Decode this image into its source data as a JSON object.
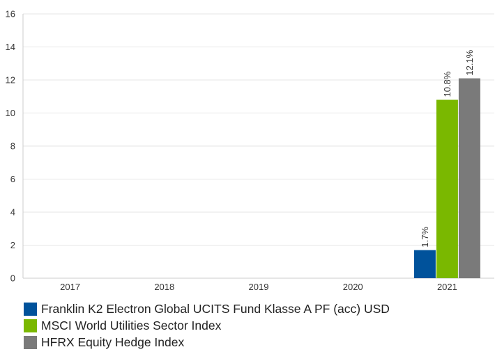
{
  "chart_data": {
    "type": "bar",
    "categories": [
      "2017",
      "2018",
      "2019",
      "2020",
      "2021"
    ],
    "series": [
      {
        "name": "Franklin K2 Electron Global UCITS Fund Klasse A PF (acc) USD",
        "color": "#00529b",
        "values": [
          null,
          null,
          null,
          null,
          1.7
        ],
        "labels": [
          "",
          "",
          "",
          "",
          "1.7%"
        ]
      },
      {
        "name": "MSCI World Utilities Sector Index",
        "color": "#7ab800",
        "values": [
          null,
          null,
          null,
          null,
          10.8
        ],
        "labels": [
          "",
          "",
          "",
          "",
          "10.8%"
        ]
      },
      {
        "name": "HFRX Equity Hedge Index",
        "color": "#7a7a7a",
        "values": [
          null,
          null,
          null,
          null,
          12.1
        ],
        "labels": [
          "",
          "",
          "",
          "",
          "12.1%"
        ]
      }
    ],
    "yticks": [
      "0",
      "2",
      "4",
      "6",
      "8",
      "10",
      "12",
      "14",
      "16"
    ],
    "ylim": [
      0,
      16
    ],
    "grid": true,
    "legend_position": "bottom-left",
    "title": "",
    "xlabel": "",
    "ylabel": ""
  }
}
